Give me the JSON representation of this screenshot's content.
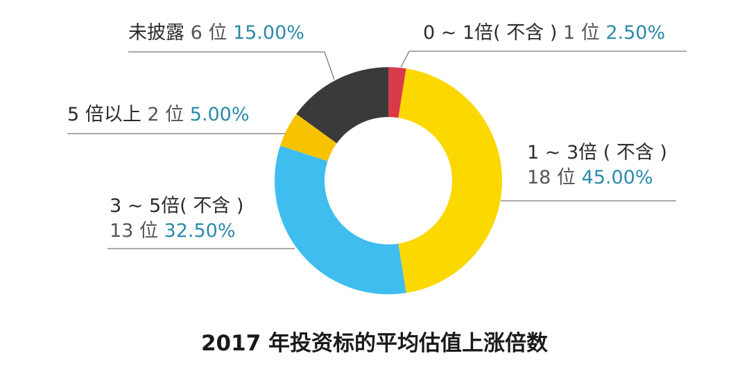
{
  "chart_data": {
    "type": "pie",
    "variant": "donut",
    "title": "2017 年投资标的平均估值上涨倍数",
    "slices": [
      {
        "label": "0 ~ 1倍( 不含 )",
        "count": "1 位",
        "percent": "2.50%",
        "value": 2.5,
        "color": "#d93a4a"
      },
      {
        "label": "1 ~ 3倍 ( 不含 )",
        "count": "18 位",
        "percent": "45.00%",
        "value": 45,
        "color": "#fbd800"
      },
      {
        "label": "3 ~ 5倍( 不含 )",
        "count": "13 位",
        "percent": "32.50%",
        "value": 32.5,
        "color": "#3fbdee"
      },
      {
        "label": "5 倍以上",
        "count": "2 位",
        "percent": "5.00%",
        "value": 5,
        "color": "#f7c300"
      },
      {
        "label": "未披露",
        "count": "6 位",
        "percent": "15.00%",
        "value": 15,
        "color": "#3a3a3a"
      }
    ]
  }
}
